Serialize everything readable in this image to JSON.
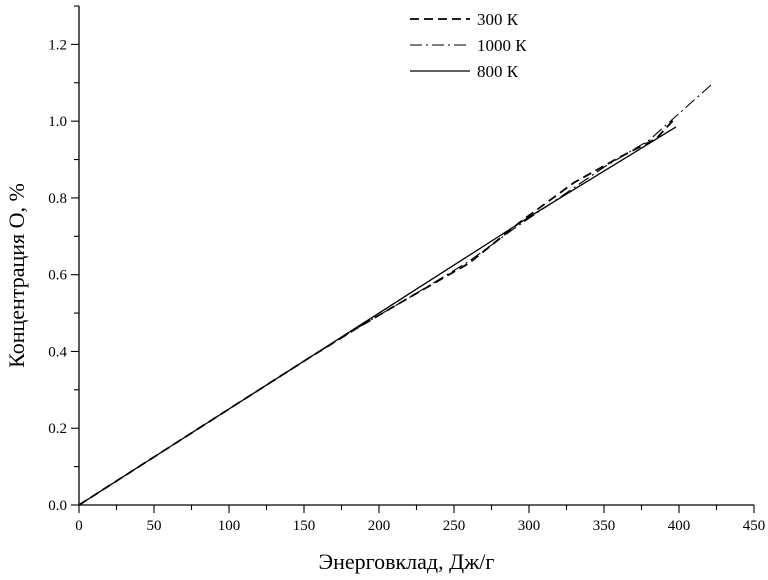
{
  "chart_data": {
    "type": "line",
    "title": "",
    "xlabel": "Энерговклад, Дж/г",
    "ylabel": "Концентрация О, %",
    "xlim": [
      0,
      450
    ],
    "ylim": [
      0,
      1.3
    ],
    "xticks": [
      0,
      50,
      100,
      150,
      200,
      250,
      300,
      350,
      400,
      450
    ],
    "yticks": [
      0.0,
      0.2,
      0.4,
      0.6,
      0.8,
      1.0,
      1.2
    ],
    "xtick_labels": [
      "0",
      "50",
      "100",
      "150",
      "200",
      "250",
      "300",
      "350",
      "400",
      "450"
    ],
    "ytick_labels": [
      "0.0",
      "0.2",
      "0.4",
      "0.6",
      "0.8",
      "1.0",
      "1.2"
    ],
    "grid": false,
    "legend_position": "top-right",
    "series": [
      {
        "name": "300 К",
        "style": "dashed",
        "x": [
          0,
          50,
          100,
          150,
          185,
          220,
          260,
          295,
          330,
          360,
          385,
          398
        ],
        "y": [
          0.0,
          0.125,
          0.25,
          0.375,
          0.46,
          0.54,
          0.63,
          0.74,
          0.84,
          0.905,
          0.955,
          1.01
        ]
      },
      {
        "name": "1000 К",
        "style": "dash-dot",
        "x": [
          0,
          50,
          100,
          150,
          185,
          220,
          260,
          290,
          320,
          350,
          380,
          400,
          423
        ],
        "y": [
          0.0,
          0.125,
          0.25,
          0.375,
          0.46,
          0.54,
          0.635,
          0.72,
          0.8,
          0.88,
          0.95,
          1.02,
          1.1
        ]
      },
      {
        "name": "800 К",
        "style": "solid",
        "x": [
          0,
          50,
          100,
          150,
          200,
          250,
          300,
          350,
          398
        ],
        "y": [
          0.0,
          0.125,
          0.25,
          0.375,
          0.5,
          0.625,
          0.75,
          0.87,
          0.985
        ]
      }
    ]
  }
}
